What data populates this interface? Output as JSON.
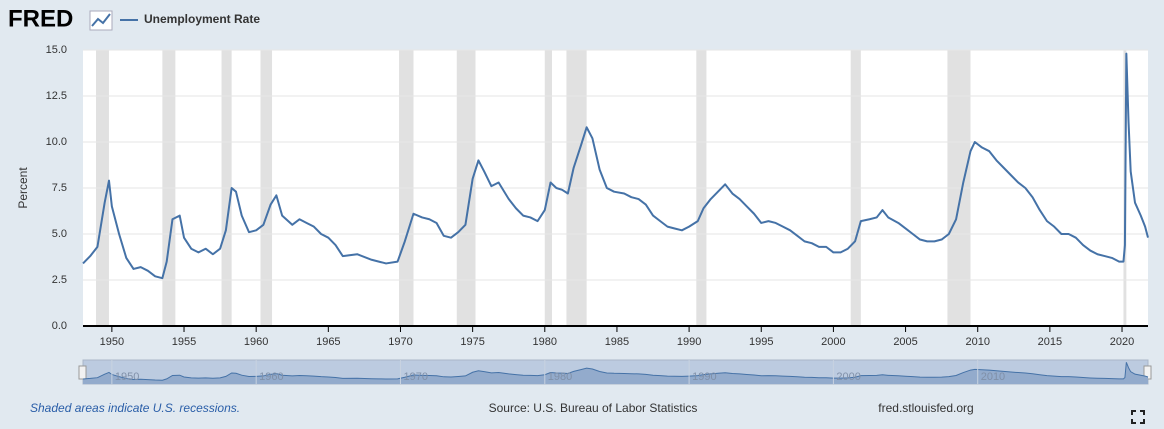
{
  "chart_data": {
    "type": "line",
    "logo": "FRED",
    "y_label": "Percent",
    "footnote": "Shaded areas indicate U.S. recessions.",
    "source": "Source: U.S. Bureau of Labor Statistics",
    "site": "fred.stlouisfed.org",
    "xlim": [
      1948,
      2021.8
    ],
    "ylim": [
      0,
      15
    ],
    "xticks": [
      1950,
      1955,
      1960,
      1965,
      1970,
      1975,
      1980,
      1985,
      1990,
      1995,
      2000,
      2005,
      2010,
      2015,
      2020
    ],
    "yticks": [
      {
        "value": 0,
        "label": "0.0"
      },
      2.5,
      {
        "value": 5,
        "label": "5.0"
      },
      7.5,
      {
        "value": 10,
        "label": "10.0"
      },
      {
        "value": 12.5,
        "label": "12.5"
      },
      {
        "value": 15,
        "label": "15.0"
      }
    ],
    "navigator_xticks": [
      1950,
      1960,
      1970,
      1980,
      1990,
      2000,
      2010
    ],
    "grid": true,
    "recessions": [
      [
        1948.9,
        1949.8
      ],
      [
        1953.5,
        1954.4
      ],
      [
        1957.6,
        1958.3
      ],
      [
        1960.3,
        1961.1
      ],
      [
        1969.9,
        1970.9
      ],
      [
        1973.9,
        1975.2
      ],
      [
        1980.0,
        1980.5
      ],
      [
        1981.5,
        1982.9
      ],
      [
        1990.5,
        1991.2
      ],
      [
        2001.2,
        2001.9
      ],
      [
        2007.9,
        2009.5
      ],
      [
        2020.1,
        2020.3
      ]
    ],
    "x": [
      1948.0,
      1948.5,
      1949.0,
      1949.5,
      1949.8,
      1950.0,
      1950.5,
      1951.0,
      1951.5,
      1952.0,
      1952.5,
      1953.0,
      1953.5,
      1953.8,
      1954.2,
      1954.7,
      1955.0,
      1955.5,
      1956.0,
      1956.5,
      1957.0,
      1957.5,
      1957.9,
      1958.3,
      1958.6,
      1959.0,
      1959.5,
      1960.0,
      1960.5,
      1961.0,
      1961.4,
      1961.8,
      1962.5,
      1963.0,
      1963.5,
      1964.0,
      1964.5,
      1965.0,
      1965.5,
      1966.0,
      1967.0,
      1968.0,
      1968.5,
      1969.0,
      1969.8,
      1970.3,
      1970.9,
      1971.5,
      1972.0,
      1972.5,
      1973.0,
      1973.5,
      1974.0,
      1974.5,
      1975.0,
      1975.4,
      1975.8,
      1976.3,
      1976.8,
      1977.5,
      1978.0,
      1978.5,
      1979.0,
      1979.5,
      1980.0,
      1980.4,
      1980.8,
      1981.2,
      1981.6,
      1982.0,
      1982.5,
      1982.9,
      1983.3,
      1983.8,
      1984.3,
      1984.8,
      1985.5,
      1986.0,
      1986.5,
      1987.0,
      1987.5,
      1988.0,
      1988.5,
      1989.0,
      1989.5,
      1990.0,
      1990.6,
      1991.0,
      1991.5,
      1992.0,
      1992.5,
      1993.0,
      1993.5,
      1994.0,
      1994.5,
      1995.0,
      1995.5,
      1996.0,
      1996.5,
      1997.0,
      1997.5,
      1998.0,
      1998.5,
      1999.0,
      1999.5,
      2000.0,
      2000.5,
      2001.0,
      2001.5,
      2001.9,
      2002.5,
      2003.0,
      2003.4,
      2003.8,
      2004.5,
      2005.0,
      2005.5,
      2006.0,
      2006.5,
      2007.0,
      2007.5,
      2008.0,
      2008.5,
      2009.0,
      2009.5,
      2009.8,
      2010.3,
      2010.8,
      2011.3,
      2011.8,
      2012.3,
      2012.8,
      2013.3,
      2013.8,
      2014.3,
      2014.8,
      2015.3,
      2015.8,
      2016.3,
      2016.8,
      2017.3,
      2017.8,
      2018.3,
      2018.8,
      2019.3,
      2019.8,
      2020.1,
      2020.2,
      2020.3,
      2020.45,
      2020.6,
      2020.9,
      2021.3,
      2021.6,
      2021.8
    ],
    "series": [
      {
        "name": "Unemployment Rate",
        "color": "#4572a7",
        "values": [
          3.4,
          3.8,
          4.3,
          6.7,
          7.9,
          6.5,
          5.0,
          3.7,
          3.1,
          3.2,
          3.0,
          2.7,
          2.6,
          3.5,
          5.8,
          6.0,
          4.8,
          4.2,
          4.0,
          4.2,
          3.9,
          4.2,
          5.2,
          7.5,
          7.3,
          6.0,
          5.1,
          5.2,
          5.5,
          6.6,
          7.1,
          6.0,
          5.5,
          5.8,
          5.6,
          5.4,
          5.0,
          4.8,
          4.4,
          3.8,
          3.9,
          3.6,
          3.5,
          3.4,
          3.5,
          4.6,
          6.1,
          5.9,
          5.8,
          5.6,
          4.9,
          4.8,
          5.1,
          5.5,
          8.0,
          9.0,
          8.4,
          7.6,
          7.8,
          6.9,
          6.4,
          6.0,
          5.9,
          5.7,
          6.3,
          7.8,
          7.5,
          7.4,
          7.2,
          8.6,
          9.8,
          10.8,
          10.2,
          8.5,
          7.5,
          7.3,
          7.2,
          7.0,
          6.9,
          6.6,
          6.0,
          5.7,
          5.4,
          5.3,
          5.2,
          5.4,
          5.7,
          6.4,
          6.9,
          7.3,
          7.7,
          7.2,
          6.9,
          6.5,
          6.1,
          5.6,
          5.7,
          5.6,
          5.4,
          5.2,
          4.9,
          4.6,
          4.5,
          4.3,
          4.3,
          4.0,
          4.0,
          4.2,
          4.6,
          5.7,
          5.8,
          5.9,
          6.3,
          5.9,
          5.6,
          5.3,
          5.0,
          4.7,
          4.6,
          4.6,
          4.7,
          5.0,
          5.8,
          7.8,
          9.5,
          10.0,
          9.7,
          9.5,
          9.0,
          8.6,
          8.2,
          7.8,
          7.5,
          7.0,
          6.3,
          5.7,
          5.4,
          5.0,
          5.0,
          4.8,
          4.4,
          4.1,
          3.9,
          3.8,
          3.7,
          3.5,
          3.5,
          4.4,
          14.8,
          11.1,
          8.4,
          6.7,
          6.0,
          5.4,
          4.8
        ]
      }
    ]
  }
}
